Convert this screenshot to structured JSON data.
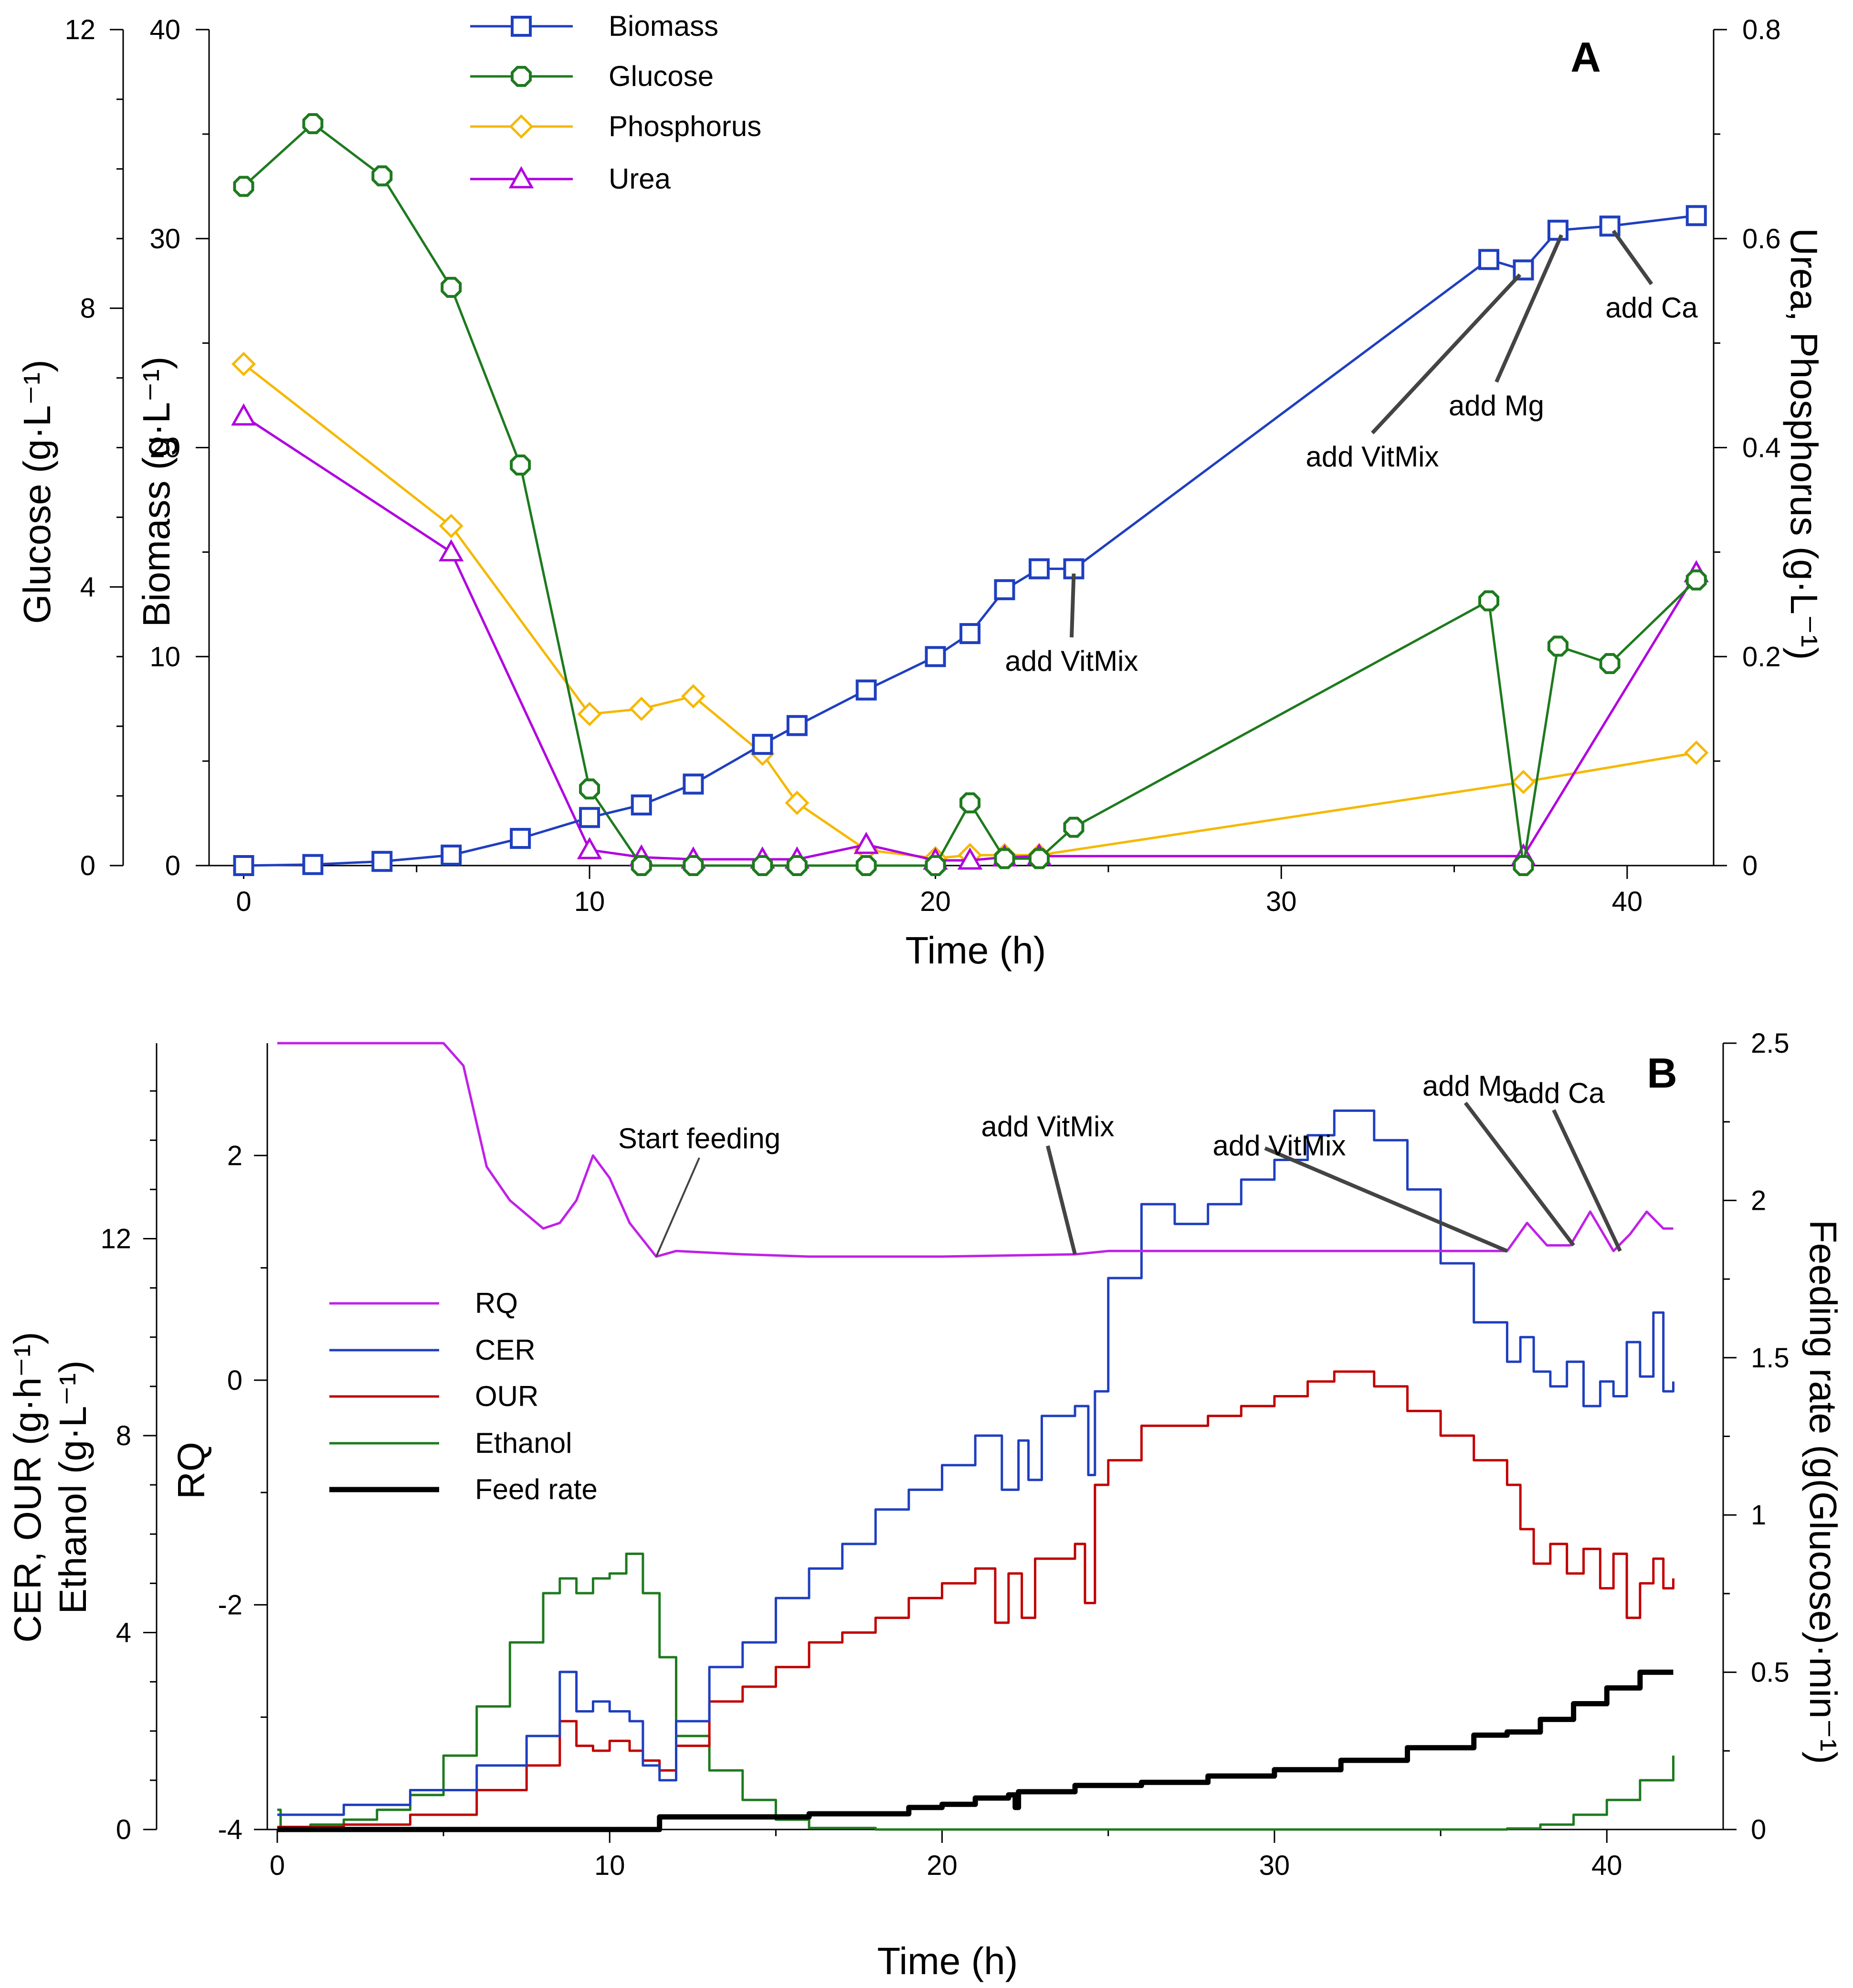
{
  "colors": {
    "biomass": "#1f3fbf",
    "glucose": "#1e7a1e",
    "phosphorus": "#f5b800",
    "urea": "#b000e0",
    "rq": "#c020e8",
    "cer": "#1f3fbf",
    "our": "#c00000",
    "ethanol": "#1e7a1e",
    "feed": "#000000"
  },
  "chart_data": [
    {
      "panel": "A",
      "type": "line",
      "xlabel": "Time (h)",
      "xlim": [
        -1,
        42.5
      ],
      "xticks": [
        0,
        10,
        20,
        30,
        40
      ],
      "axes": {
        "glucose": {
          "title": "Glucose (g·L⁻¹)",
          "lim": [
            0,
            12
          ],
          "ticks": [
            0,
            4,
            8,
            12
          ]
        },
        "biomass": {
          "title": "Biomass (g·L⁻¹)",
          "lim": [
            0,
            40
          ],
          "ticks": [
            0,
            10,
            20,
            30,
            40
          ]
        },
        "urea_phosphorus": {
          "title": "Urea, Phosphorus (g·L⁻¹)",
          "lim": [
            0,
            0.8
          ],
          "ticks": [
            "0",
            "0.2",
            "0.4",
            "0.6",
            "0.8"
          ]
        }
      },
      "legend": [
        "Biomass",
        "Glucose",
        "Phosphorus",
        "Urea"
      ],
      "series": [
        {
          "name": "Biomass",
          "axis": "biomass",
          "marker": "square",
          "x": [
            0,
            2,
            4,
            6,
            8,
            10,
            11.5,
            13,
            15,
            16,
            18,
            20,
            21,
            22,
            23,
            24,
            36,
            37,
            38,
            39.5,
            42
          ],
          "y": [
            0,
            0.05,
            0.2,
            0.5,
            1.3,
            2.3,
            2.9,
            3.9,
            5.8,
            6.7,
            8.4,
            10,
            11.1,
            13.2,
            14.2,
            14.2,
            29,
            28.5,
            30.4,
            30.6,
            31.1
          ]
        },
        {
          "name": "Glucose",
          "axis": "glucose",
          "marker": "circle",
          "x": [
            0,
            2,
            4,
            6,
            8,
            10,
            11.5,
            13,
            15,
            16,
            18,
            20,
            21,
            22,
            23,
            24,
            36,
            37,
            38,
            39.5,
            42
          ],
          "y": [
            9.75,
            10.65,
            9.9,
            8.3,
            5.75,
            1.1,
            0,
            0,
            0,
            0,
            0,
            0,
            0.9,
            0.1,
            0.1,
            0.55,
            3.8,
            0,
            3.15,
            2.9,
            4.1
          ]
        },
        {
          "name": "Phosphorus",
          "axis": "urea_phosphorus",
          "marker": "diamond",
          "x": [
            0,
            6,
            10,
            11.5,
            13,
            15,
            16,
            18,
            20,
            21,
            22,
            23,
            37,
            42
          ],
          "y": [
            0.48,
            0.325,
            0.145,
            0.15,
            0.162,
            0.107,
            0.06,
            0.015,
            0.007,
            0.01,
            0.01,
            0.01,
            0.08,
            0.108
          ]
        },
        {
          "name": "Urea",
          "axis": "urea_phosphorus",
          "marker": "triangle",
          "x": [
            0,
            6,
            10,
            11.5,
            13,
            15,
            16,
            18,
            20,
            21,
            22,
            23,
            37,
            42
          ],
          "y": [
            0.43,
            0.3,
            0.015,
            0.008,
            0.006,
            0.006,
            0.006,
            0.02,
            0.005,
            0.005,
            0.008,
            0.009,
            0.009,
            0.28
          ]
        }
      ],
      "annotations": [
        {
          "text": "add VitMix",
          "x": 24,
          "y_biomass": 14.2
        },
        {
          "text": "add VitMix",
          "x": 36.9,
          "y_biomass": 28.5
        },
        {
          "text": "add Mg",
          "x": 38.1,
          "y_biomass": 30.4
        },
        {
          "text": "add Ca",
          "x": 39.6,
          "y_biomass": 30.6
        }
      ],
      "panel_label": "A"
    },
    {
      "panel": "B",
      "type": "line",
      "xlabel": "Time (h)",
      "xlim": [
        -0.3,
        43.5
      ],
      "xticks": [
        0,
        10,
        20,
        30,
        40
      ],
      "axes": {
        "left": {
          "title_line1": "CER, OUR (g·h⁻¹)",
          "title_line2": "Ethanol (g·L⁻¹)",
          "lim": [
            0,
            16
          ],
          "ticks": [
            0,
            4,
            8,
            12
          ]
        },
        "rq": {
          "title": "RQ",
          "lim": [
            -4,
            3
          ],
          "ticks": [
            "-4",
            "-2",
            "0",
            "2"
          ]
        },
        "feed": {
          "title": "Feeding rate (g(Glucose)·min⁻¹)",
          "lim": [
            0,
            2.5
          ],
          "ticks": [
            "0",
            "0.5",
            "1",
            "1.5",
            "2",
            "2.5"
          ]
        }
      },
      "legend": [
        "RQ",
        "CER",
        "OUR",
        "Ethanol",
        "Feed rate"
      ],
      "series": [
        {
          "name": "RQ",
          "axis": "rq",
          "x": [
            0,
            5,
            5.6,
            6.3,
            7,
            8,
            8.5,
            9,
            9.5,
            10,
            10.6,
            11.4,
            12,
            14,
            16,
            20,
            24,
            25,
            30,
            37,
            37.6,
            38.2,
            38.9,
            39.5,
            40.2,
            40.7,
            41.2,
            41.7,
            42
          ],
          "y": [
            3,
            3,
            2.8,
            1.9,
            1.6,
            1.35,
            1.4,
            1.6,
            2,
            1.8,
            1.4,
            1.1,
            1.15,
            1.12,
            1.1,
            1.1,
            1.12,
            1.15,
            1.15,
            1.15,
            1.4,
            1.2,
            1.2,
            1.5,
            1.15,
            1.3,
            1.5,
            1.35,
            1.35
          ]
        },
        {
          "name": "CER",
          "axis": "left",
          "x": [
            0,
            2,
            4,
            6,
            7.5,
            8.5,
            9,
            9.5,
            10,
            10.6,
            11,
            11.5,
            12,
            13,
            14,
            15,
            16,
            17,
            18,
            19,
            20,
            21,
            21.8,
            22.3,
            22.6,
            23,
            24,
            24.4,
            24.6,
            25,
            26,
            27,
            28,
            29,
            30,
            31,
            31.8,
            33,
            34,
            35,
            36,
            37,
            37.4,
            37.8,
            38.3,
            38.8,
            39.3,
            39.8,
            40.2,
            40.6,
            41,
            41.4,
            41.7,
            42
          ],
          "y": [
            0.3,
            0.5,
            0.8,
            1.3,
            1.9,
            3.2,
            2.4,
            2.6,
            2.4,
            2.2,
            1.3,
            1,
            2.2,
            3.3,
            3.8,
            4.7,
            5.3,
            5.8,
            6.5,
            6.9,
            7.4,
            8,
            6.9,
            7.9,
            7.1,
            8.4,
            8.6,
            7.2,
            8.9,
            11.2,
            12.7,
            12.3,
            12.7,
            13.2,
            13.6,
            14.1,
            14.6,
            14,
            13,
            11.5,
            10.3,
            9.5,
            10,
            9.3,
            9,
            9.5,
            8.6,
            9.1,
            8.8,
            9.9,
            9.2,
            10.5,
            8.9,
            9.1
          ]
        },
        {
          "name": "OUR",
          "axis": "left",
          "x": [
            0,
            2,
            4,
            6,
            7.5,
            8.5,
            9,
            9.5,
            10,
            10.6,
            11,
            11.5,
            12,
            13,
            14,
            15,
            16,
            17,
            18,
            19,
            20,
            21,
            21.6,
            22,
            22.4,
            22.8,
            24,
            24.3,
            24.6,
            25,
            26,
            27,
            28,
            29,
            30,
            31,
            31.8,
            33,
            34,
            35,
            36,
            37,
            37.4,
            37.8,
            38.3,
            38.8,
            39.3,
            39.8,
            40.2,
            40.6,
            41,
            41.4,
            41.7,
            42
          ],
          "y": [
            0.05,
            0.1,
            0.3,
            0.8,
            1.3,
            2.2,
            1.7,
            1.6,
            1.8,
            1.6,
            1.4,
            1.2,
            1.7,
            2.6,
            2.9,
            3.3,
            3.8,
            4,
            4.3,
            4.7,
            5,
            5.3,
            4.2,
            5.2,
            4.3,
            5.5,
            5.8,
            4.6,
            7,
            7.5,
            8.2,
            8.2,
            8.4,
            8.6,
            8.8,
            9.1,
            9.3,
            9,
            8.5,
            8,
            7.5,
            7,
            6.1,
            5.4,
            5.8,
            5.2,
            5.7,
            4.9,
            5.6,
            4.3,
            5.0,
            5.5,
            4.9,
            5.1
          ]
        },
        {
          "name": "Ethanol",
          "axis": "left",
          "x": [
            0,
            0.1,
            1,
            2,
            3,
            4,
            5,
            6,
            7,
            8,
            8.5,
            9,
            9.5,
            10,
            10.5,
            11,
            11.5,
            12,
            13,
            14,
            15,
            16,
            18,
            20,
            25,
            30,
            35,
            37,
            38,
            39,
            40,
            41,
            42
          ],
          "y": [
            0.4,
            0.05,
            0.1,
            0.2,
            0.4,
            0.7,
            1.5,
            2.5,
            3.8,
            4.8,
            5.1,
            4.8,
            5.1,
            5.2,
            5.6,
            4.8,
            3.5,
            1.9,
            1.2,
            0.6,
            0.2,
            0.03,
            0,
            0,
            0,
            0,
            0,
            0.02,
            0.1,
            0.3,
            0.6,
            1.0,
            1.5
          ]
        },
        {
          "name": "Feed rate",
          "axis": "feed",
          "x": [
            0,
            11.5,
            11.5,
            16,
            19,
            20,
            21,
            22,
            22.2,
            22.3,
            23,
            24,
            26,
            28,
            30,
            32,
            34,
            36,
            37,
            38,
            39,
            40,
            41,
            42
          ],
          "y": [
            0,
            0,
            0.04,
            0.05,
            0.07,
            0.08,
            0.1,
            0.11,
            0.07,
            0.12,
            0.12,
            0.14,
            0.15,
            0.17,
            0.19,
            0.22,
            0.26,
            0.3,
            0.31,
            0.35,
            0.4,
            0.45,
            0.5,
            0.5
          ]
        }
      ],
      "annotations": [
        {
          "text": "Start feeding",
          "x": 11.4,
          "y_rq": 1.1
        },
        {
          "text": "add VitMix",
          "x": 24,
          "y_rq": 1.12
        },
        {
          "text": "add VitMix",
          "x": 37.0,
          "y_rq": 1.15
        },
        {
          "text": "add Mg",
          "x": 39.0,
          "y_rq": 1.2
        },
        {
          "text": "add Ca",
          "x": 40.4,
          "y_rq": 1.15
        }
      ],
      "panel_label": "B"
    }
  ]
}
